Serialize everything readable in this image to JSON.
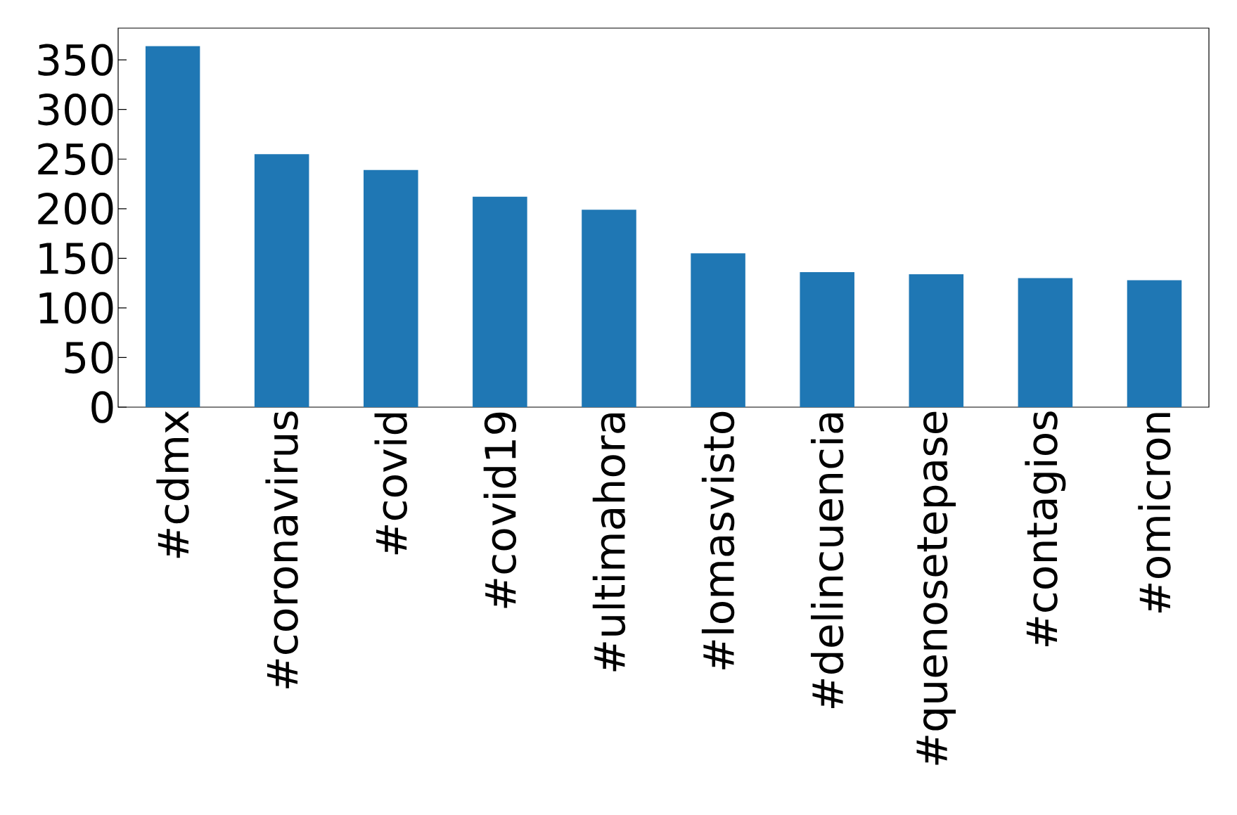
{
  "chart_data": {
    "type": "bar",
    "categories": [
      "#cdmx",
      "#coronavirus",
      "#covid",
      "#covid19",
      "#ultimahora",
      "#lomasvisto",
      "#delincuencia",
      "#quenosetepase",
      "#contagios",
      "#omicron"
    ],
    "values": [
      364,
      255,
      239,
      212,
      199,
      155,
      136,
      134,
      130,
      128
    ],
    "color": "#1f77b4",
    "ylim": [
      0,
      382
    ],
    "yticks": [
      0,
      50,
      100,
      150,
      200,
      250,
      300,
      350
    ],
    "grid": false
  }
}
